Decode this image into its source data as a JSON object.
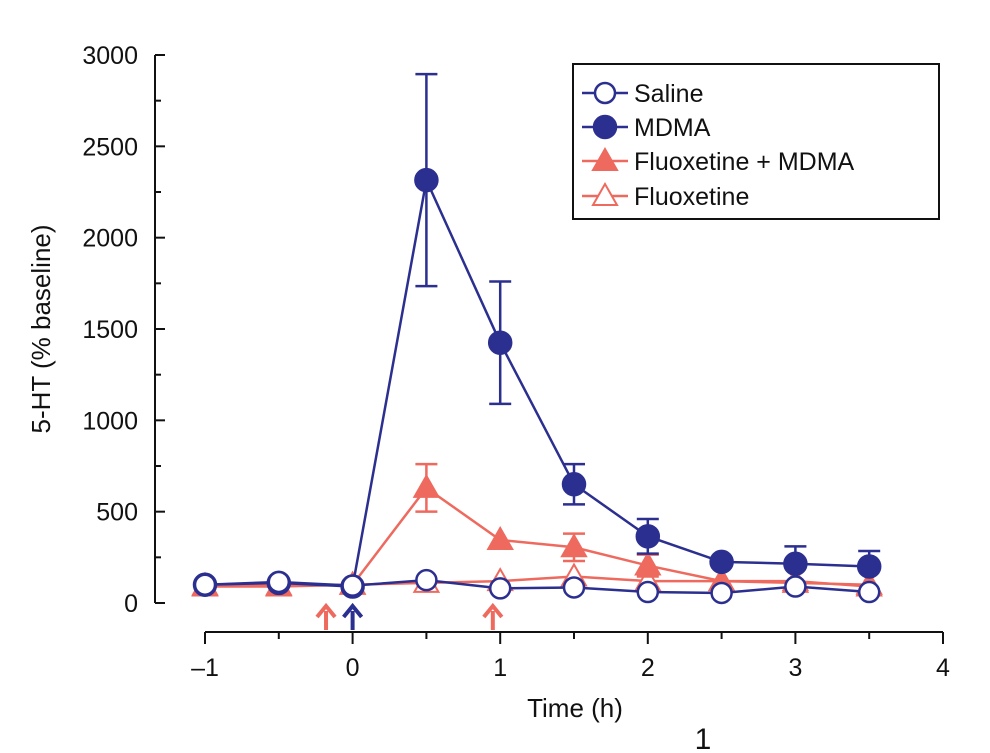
{
  "chart_data": {
    "type": "line",
    "title": "",
    "xlabel": "Time (h)",
    "ylabel": "5-HT (% baseline)",
    "xlim": [
      -1,
      4
    ],
    "ylim": [
      0,
      3000
    ],
    "x_ticks": [
      -1,
      0,
      1,
      2,
      3,
      4
    ],
    "x_tick_labels": [
      "–1",
      "0",
      "1",
      "2",
      "3",
      "4"
    ],
    "y_ticks": [
      0,
      500,
      1000,
      1500,
      2000,
      2500,
      3000
    ],
    "y_tick_labels": [
      "0",
      "500",
      "1000",
      "1500",
      "2000",
      "2500",
      "3000"
    ],
    "legend_position": "top-right",
    "series": [
      {
        "name": "Saline",
        "color": "#2b2f8f",
        "marker": "circle-open",
        "x": [
          -1,
          -0.5,
          0,
          0.5,
          1,
          1.5,
          2,
          2.5,
          3,
          3.5
        ],
        "y": [
          100,
          115,
          95,
          125,
          80,
          85,
          60,
          55,
          90,
          60
        ],
        "err_up": [
          0,
          0,
          0,
          0,
          0,
          0,
          0,
          0,
          0,
          0
        ]
      },
      {
        "name": "MDMA",
        "color": "#2b2f8f",
        "marker": "circle-filled",
        "x": [
          -1,
          -0.5,
          0,
          0.5,
          1,
          1.5,
          2,
          2.5,
          3,
          3.5
        ],
        "y": [
          100,
          110,
          90,
          2315,
          1425,
          650,
          365,
          225,
          215,
          200
        ],
        "err_up": [
          0,
          0,
          0,
          580,
          335,
          110,
          95,
          0,
          95,
          85
        ],
        "err_down": [
          0,
          0,
          0,
          580,
          335,
          110,
          95,
          0,
          0,
          0
        ]
      },
      {
        "name": "Fluoxetine + MDMA",
        "color": "#ee6a5e",
        "marker": "triangle-filled",
        "x": [
          -1,
          -0.5,
          0,
          0.5,
          1,
          1.5,
          2,
          2.5,
          3,
          3.5
        ],
        "y": [
          90,
          90,
          100,
          630,
          345,
          305,
          205,
          120,
          110,
          100
        ],
        "err_up": [
          0,
          0,
          0,
          130,
          0,
          75,
          60,
          0,
          0,
          0
        ],
        "err_down": [
          0,
          0,
          0,
          130,
          0,
          75,
          60,
          0,
          0,
          0
        ]
      },
      {
        "name": "Fluoxetine",
        "color": "#ee6a5e",
        "marker": "triangle-open",
        "x": [
          -1,
          -0.5,
          0,
          0.5,
          1,
          1.5,
          2,
          2.5,
          3,
          3.5
        ],
        "y": [
          95,
          95,
          100,
          110,
          120,
          145,
          120,
          120,
          120,
          90
        ],
        "err_up": [
          0,
          0,
          0,
          0,
          0,
          0,
          0,
          0,
          0,
          0
        ]
      }
    ],
    "annotations": [
      {
        "type": "arrow",
        "x": -0.18,
        "color": "#ee6a5e",
        "meaning": "fluoxetine injection"
      },
      {
        "type": "arrow",
        "x": 0,
        "color": "#2b2f8f",
        "meaning": "MDMA injection"
      },
      {
        "type": "arrow",
        "x": 0.95,
        "color": "#ee6a5e",
        "meaning": "fluoxetine injection"
      }
    ],
    "stray_text": "1"
  }
}
